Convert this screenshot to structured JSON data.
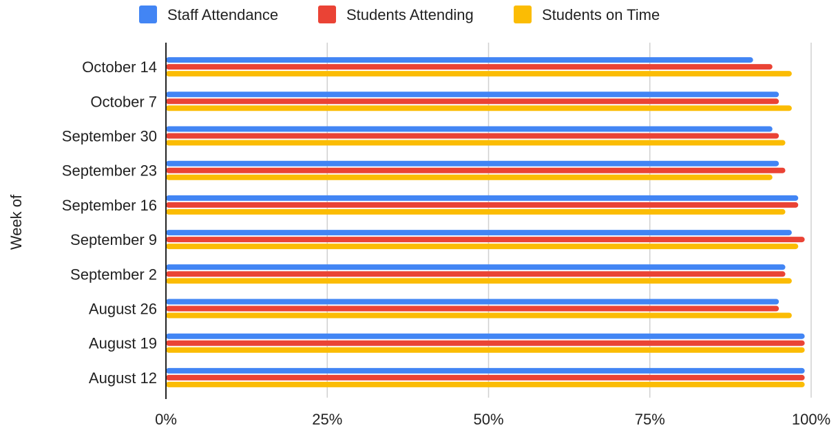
{
  "chart_data": {
    "type": "bar",
    "orientation": "horizontal",
    "categories": [
      "October 14",
      "October 7",
      "September 30",
      "September 23",
      "September 16",
      "September 9",
      "September 2",
      "August 26",
      "August 19",
      "August 12"
    ],
    "series": [
      {
        "name": "Staff Attendance",
        "color": "#4285F4",
        "values": [
          91,
          95,
          94,
          95,
          98,
          97,
          96,
          95,
          99,
          99
        ]
      },
      {
        "name": "Students Attending",
        "color": "#EA4335",
        "values": [
          94,
          95,
          95,
          96,
          98,
          99,
          96,
          95,
          99,
          99
        ]
      },
      {
        "name": "Students on Time",
        "color": "#FBBC04",
        "values": [
          97,
          97,
          96,
          94,
          96,
          98,
          97,
          97,
          99,
          99
        ]
      }
    ],
    "ylabel": "Week of",
    "xlim": [
      0,
      100
    ],
    "xticks": [
      "0%",
      "25%",
      "50%",
      "75%",
      "100%"
    ],
    "grid": true,
    "legend_position": "top"
  }
}
